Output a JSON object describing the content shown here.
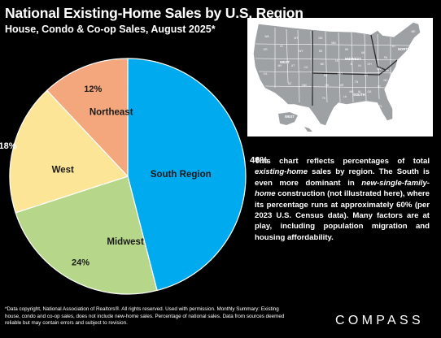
{
  "header": {
    "title": "National Existing-Home Sales by U.S. Region",
    "subtitle": "House, Condo & Co-op Sales, August 2025*"
  },
  "chart_data": {
    "type": "pie",
    "categories": [
      "South Region",
      "Midwest",
      "West",
      "Northeast"
    ],
    "values": [
      46,
      24,
      18,
      12
    ],
    "value_labels": [
      "46%",
      "24%",
      "18%",
      "12%"
    ],
    "colors": [
      "#00aaef",
      "#b6d78a",
      "#fce596",
      "#f4a67d"
    ],
    "start_angle_deg": 0,
    "direction": "clockwise"
  },
  "map": {
    "region_labels": [
      "WEST",
      "MIDWEST",
      "NORTHEAST",
      "SOUTH",
      "WEST"
    ],
    "state_labels": [
      "WA",
      "OR",
      "CA",
      "NV",
      "ID",
      "MT",
      "WY",
      "UT",
      "AZ",
      "CO",
      "NM",
      "ND",
      "SD",
      "NE",
      "KS",
      "MN",
      "IA",
      "MO",
      "WI",
      "IL",
      "MI",
      "IN",
      "OH",
      "TX",
      "OK",
      "AR",
      "LA",
      "MS",
      "AL",
      "GA",
      "FL",
      "TN",
      "KY",
      "SC",
      "NC",
      "VA",
      "WV",
      "PA",
      "NY",
      "ME"
    ],
    "colors": {
      "background": "#ffffff",
      "land": "#9ea1a4",
      "state_border": "#ffffff",
      "region_border": "#2a2a2a",
      "label": "#ffffff"
    }
  },
  "description": {
    "text1": "This chart reflects percentages of total ",
    "em1": "existing-home",
    "text2": " sales by region. The South is even more dominant in ",
    "em2": "new-single-family-home",
    "text3": " construction (not illustrated here), where its percentage runs at approximately 60% (per 2023 U.S. Census data). Many factors are at play, including population migration and housing affordability."
  },
  "footnote": "*Data copyright, National Association of Realtors®. All rights reserved. Used with permission. Monthly Summary: Existing house, condo and co-op sales, does not include new-home sales. Percentage of national sales. Data from sources deemed reliable but may contain errors and subject to revision.",
  "logo": "COMPASS"
}
